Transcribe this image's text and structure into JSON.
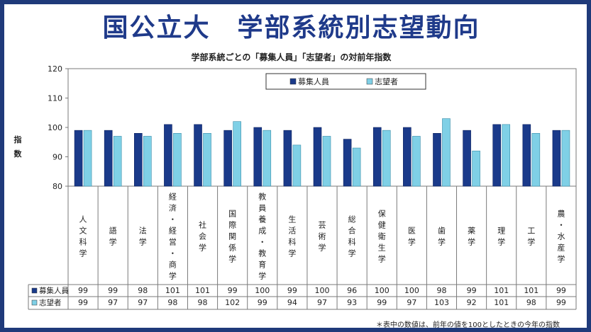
{
  "header": {
    "title": "国公立大　学部系統別志望動向",
    "subtitle": "学部系統ごとの「募集人員」「志望者」の対前年指数"
  },
  "footnote": "＊表中の数値は、前年の値を100としたときの今年の指数",
  "colors": {
    "background_frame": "#1f3a7a",
    "series_1": "#1a3a8a",
    "series_2": "#7fd0e6"
  },
  "chart_data": {
    "type": "bar",
    "title": "学部系統ごとの「募集人員」「志望者」の対前年指数",
    "xlabel": "",
    "ylabel": "指数",
    "ylim": [
      80,
      120
    ],
    "yticks": [
      80,
      90,
      100,
      110,
      120
    ],
    "grid": false,
    "legend_position": "top-right",
    "categories": [
      "人文科学",
      "語学",
      "法学",
      "経済・経営・商学",
      "社会学",
      "国際関係学",
      "教員養成・教育学",
      "生活科学",
      "芸術学",
      "総合科学",
      "保健衛生学",
      "医学",
      "歯学",
      "薬学",
      "理学",
      "工学",
      "農・水産学"
    ],
    "series": [
      {
        "name": "募集人員",
        "values": [
          99,
          99,
          98,
          101,
          101,
          99,
          100,
          99,
          100,
          96,
          100,
          100,
          98,
          99,
          101,
          101,
          99
        ]
      },
      {
        "name": "志望者",
        "values": [
          99,
          97,
          97,
          98,
          98,
          102,
          99,
          94,
          97,
          93,
          99,
          97,
          103,
          92,
          101,
          98,
          99
        ]
      }
    ]
  }
}
